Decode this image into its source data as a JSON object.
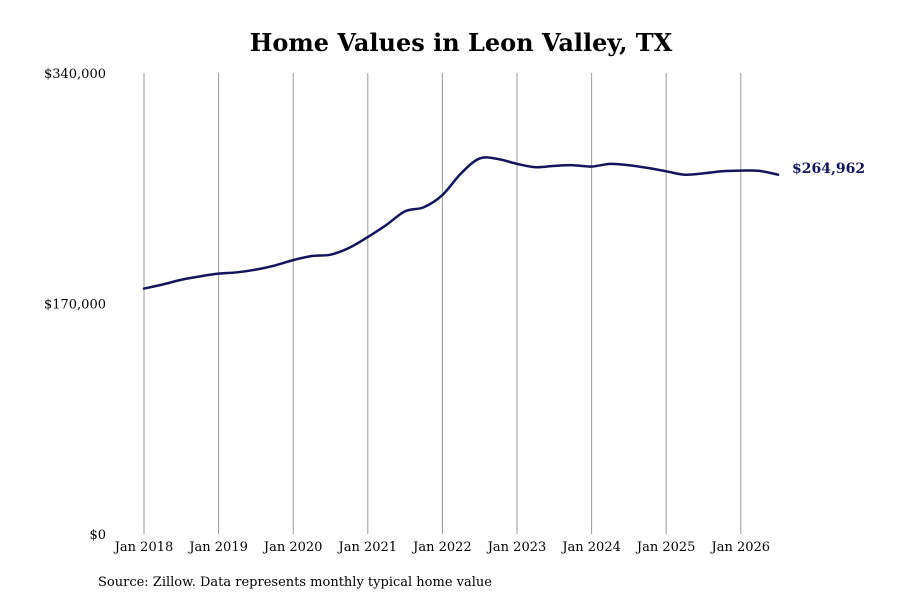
{
  "chart_data": {
    "type": "line",
    "title": "Home Values in Leon Valley, TX",
    "xlabel": "",
    "ylabel": "",
    "source": "Source: Zillow. Data represents monthly typical home value",
    "ylim": [
      0,
      340000
    ],
    "yticks": [
      {
        "value": 0,
        "label": "$0"
      },
      {
        "value": 170000,
        "label": "$170,000"
      },
      {
        "value": 340000,
        "label": "$340,000"
      }
    ],
    "xlim": [
      "2018-01",
      "2026-07"
    ],
    "xticks": [
      {
        "date": "2018-01",
        "label": "Jan 2018"
      },
      {
        "date": "2019-01",
        "label": "Jan 2019"
      },
      {
        "date": "2020-01",
        "label": "Jan 2020"
      },
      {
        "date": "2021-01",
        "label": "Jan 2021"
      },
      {
        "date": "2022-01",
        "label": "Jan 2022"
      },
      {
        "date": "2023-01",
        "label": "Jan 2023"
      },
      {
        "date": "2024-01",
        "label": "Jan 2024"
      },
      {
        "date": "2025-01",
        "label": "Jan 2025"
      },
      {
        "date": "2026-01",
        "label": "Jan 2026"
      }
    ],
    "grid": {
      "vertical": true,
      "horizontal": false
    },
    "line_color": "#14145c",
    "end_label": "$264,962",
    "series": [
      {
        "name": "",
        "x": [
          "2018-01",
          "2018-04",
          "2018-07",
          "2018-10",
          "2019-01",
          "2019-04",
          "2019-07",
          "2019-10",
          "2020-01",
          "2020-04",
          "2020-07",
          "2020-10",
          "2021-01",
          "2021-04",
          "2021-07",
          "2021-10",
          "2022-01",
          "2022-04",
          "2022-07",
          "2022-10",
          "2023-01",
          "2023-04",
          "2023-07",
          "2023-10",
          "2024-01",
          "2024-04",
          "2024-07",
          "2024-10",
          "2025-01",
          "2025-04",
          "2025-07",
          "2025-10",
          "2026-01",
          "2026-04",
          "2026-07"
        ],
        "y": [
          181000,
          184000,
          187500,
          190000,
          192000,
          193000,
          195000,
          198000,
          202000,
          205000,
          206000,
          211000,
          219000,
          228000,
          238000,
          241000,
          250000,
          266000,
          277000,
          276500,
          273000,
          270500,
          271500,
          272000,
          271000,
          273000,
          272000,
          270000,
          267500,
          265000,
          266000,
          267500,
          268000,
          267800,
          265000
        ]
      }
    ]
  }
}
